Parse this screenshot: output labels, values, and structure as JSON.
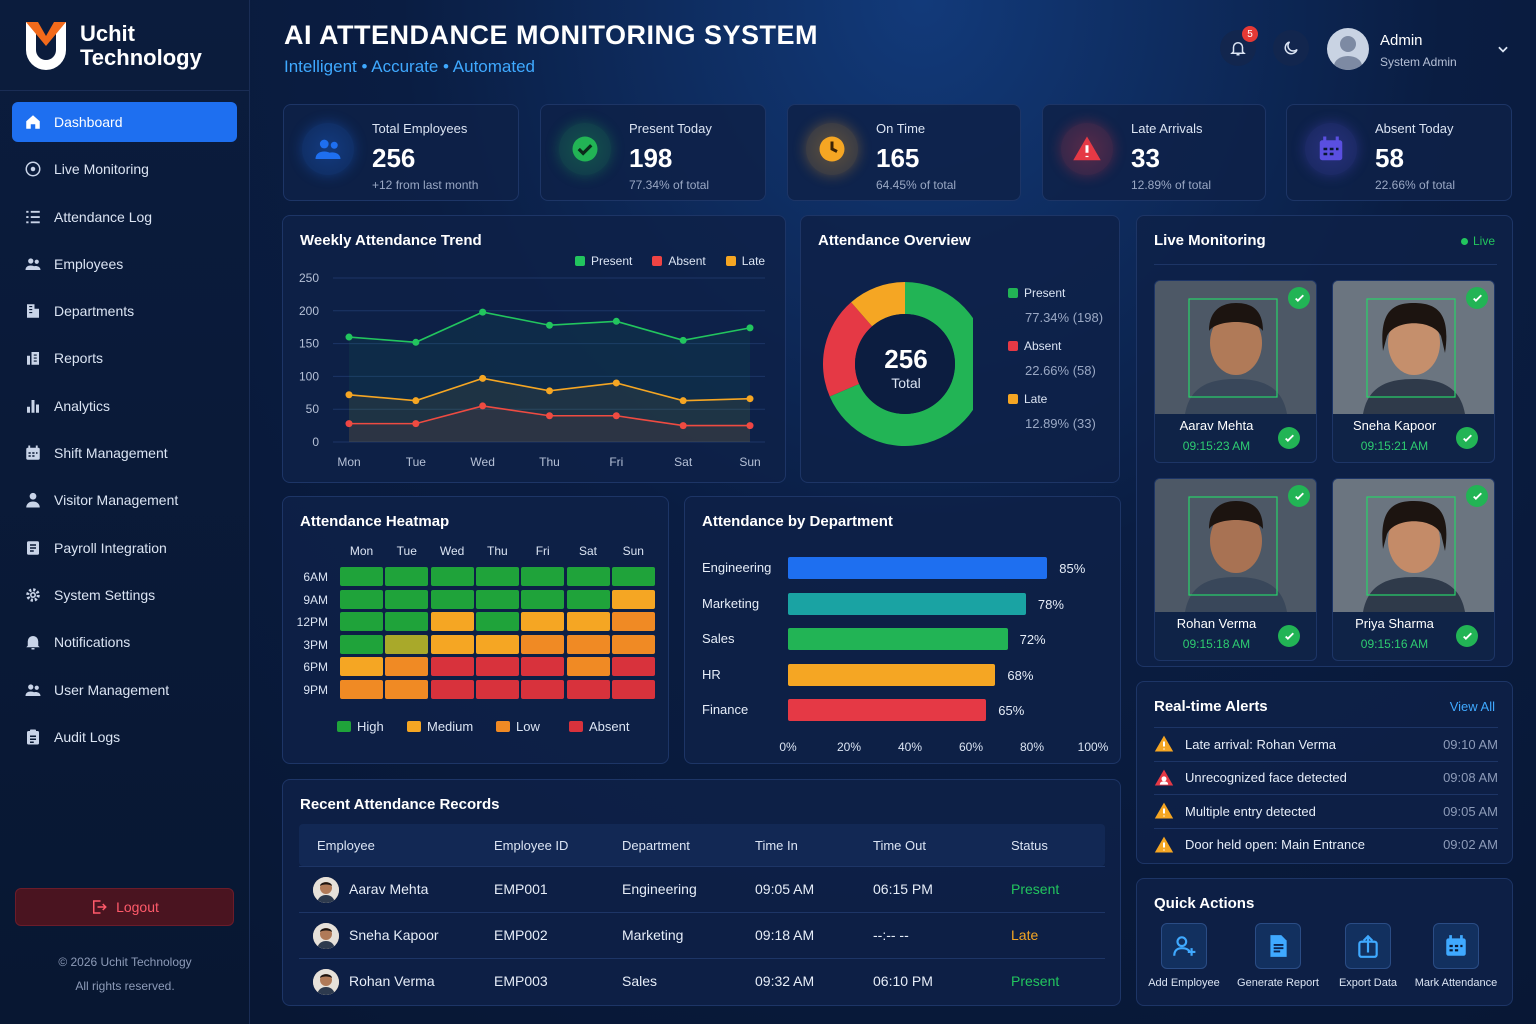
{
  "brand": {
    "name_line1": "Uchit",
    "name_line2": "Technology"
  },
  "header": {
    "title": "AI ATTENDANCE MONITORING SYSTEM",
    "subtitle": "Intelligent  •  Accurate  •  Automated",
    "notification_count": "5",
    "user_name": "Admin",
    "user_role": "System Admin"
  },
  "sidebar": {
    "items": [
      {
        "label": "Dashboard",
        "icon": "home-icon",
        "active": true
      },
      {
        "label": "Live Monitoring",
        "icon": "camera-icon"
      },
      {
        "label": "Attendance Log",
        "icon": "list-icon"
      },
      {
        "label": "Employees",
        "icon": "users-icon"
      },
      {
        "label": "Departments",
        "icon": "building-icon"
      },
      {
        "label": "Reports",
        "icon": "report-icon"
      },
      {
        "label": "Analytics",
        "icon": "bar-chart-icon"
      },
      {
        "label": "Shift Management",
        "icon": "calendar-icon"
      },
      {
        "label": "Visitor Management",
        "icon": "person-icon"
      },
      {
        "label": "Payroll Integration",
        "icon": "payroll-icon"
      },
      {
        "label": "System Settings",
        "icon": "gear-icon"
      },
      {
        "label": "Notifications",
        "icon": "bell-icon"
      },
      {
        "label": "User Management",
        "icon": "user-group-icon"
      },
      {
        "label": "Audit Logs",
        "icon": "clipboard-icon"
      }
    ],
    "logout_label": "Logout",
    "copyright_line1": "© 2026 Uchit Technology",
    "copyright_line2": "All rights reserved."
  },
  "stats": [
    {
      "label": "Total Employees",
      "value": "256",
      "sub": "+12 from last month",
      "color": "#1e6ff0",
      "icon": "users-icon"
    },
    {
      "label": "Present Today",
      "value": "198",
      "sub": "77.34% of total",
      "color": "#22b455",
      "icon": "check-icon"
    },
    {
      "label": "On Time",
      "value": "165",
      "sub": "64.45% of total",
      "color": "#f5a623",
      "icon": "clock-icon"
    },
    {
      "label": "Late Arrivals",
      "value": "33",
      "sub": "12.89% of total",
      "color": "#e53945",
      "icon": "warning-icon"
    },
    {
      "label": "Absent Today",
      "value": "58",
      "sub": "22.66% of total",
      "color": "#5a4fe0",
      "icon": "calendar-icon"
    }
  ],
  "weekly": {
    "title": "Weekly Attendance Trend",
    "legend": [
      "Present",
      "Absent",
      "Late"
    ]
  },
  "overview": {
    "title": "Attendance Overview",
    "center_value": "256",
    "center_label": "Total",
    "items": [
      {
        "label": "Present",
        "detail": "77.34% (198)",
        "color": "#22b455"
      },
      {
        "label": "Absent",
        "detail": "22.66% (58)",
        "color": "#e53945"
      },
      {
        "label": "Late",
        "detail": "12.89% (33)",
        "color": "#f5a623"
      }
    ]
  },
  "heatmap": {
    "title": "Attendance Heatmap",
    "days": [
      "Mon",
      "Tue",
      "Wed",
      "Thu",
      "Fri",
      "Sat",
      "Sun"
    ],
    "times": [
      "6AM",
      "9AM",
      "12PM",
      "3PM",
      "6PM",
      "9PM"
    ],
    "legend": [
      "High",
      "Medium",
      "Low",
      "Absent"
    ],
    "levels": [
      [
        "high",
        "high",
        "high",
        "high",
        "high",
        "high",
        "high"
      ],
      [
        "high",
        "high",
        "high",
        "high",
        "high",
        "high",
        "medium"
      ],
      [
        "high",
        "high",
        "medium",
        "high",
        "medium",
        "medium",
        "low"
      ],
      [
        "high",
        "highmed",
        "medium",
        "medium",
        "low",
        "low",
        "low"
      ],
      [
        "medium",
        "low",
        "absent",
        "absent",
        "absent",
        "low",
        "absent"
      ],
      [
        "low",
        "low",
        "absent",
        "absent",
        "absent",
        "absent",
        "absent"
      ]
    ]
  },
  "department": {
    "title": "Attendance by Department",
    "rows": [
      {
        "name": "Engineering",
        "value": 85,
        "label": "85%",
        "color": "#1e6ff0"
      },
      {
        "name": "Marketing",
        "value": 78,
        "label": "78%",
        "color": "#1aa3a3"
      },
      {
        "name": "Sales",
        "value": 72,
        "label": "72%",
        "color": "#22b455"
      },
      {
        "name": "HR",
        "value": 68,
        "label": "68%",
        "color": "#f5a623"
      },
      {
        "name": "Finance",
        "value": 65,
        "label": "65%",
        "color": "#e53945"
      }
    ],
    "ticks": [
      "0%",
      "20%",
      "40%",
      "60%",
      "80%",
      "100%"
    ]
  },
  "records": {
    "title": "Recent Attendance Records",
    "columns": [
      "Employee",
      "Employee ID",
      "Department",
      "Time In",
      "Time Out",
      "Status"
    ],
    "rows": [
      {
        "name": "Aarav Mehta",
        "id": "EMP001",
        "dept": "Engineering",
        "in": "09:05 AM",
        "out": "06:15 PM",
        "status": "Present",
        "status_color": "#22c55e"
      },
      {
        "name": "Sneha Kapoor",
        "id": "EMP002",
        "dept": "Marketing",
        "in": "09:18 AM",
        "out": "--:-- --",
        "status": "Late",
        "status_color": "#f5a623"
      },
      {
        "name": "Rohan Verma",
        "id": "EMP003",
        "dept": "Sales",
        "in": "09:32 AM",
        "out": "06:10 PM",
        "status": "Present",
        "status_color": "#22c55e"
      }
    ]
  },
  "live": {
    "title": "Live Monitoring",
    "live_label": "Live",
    "cams": [
      {
        "name": "Aarav Mehta",
        "time": "09:15:23 AM"
      },
      {
        "name": "Sneha Kapoor",
        "time": "09:15:21 AM"
      },
      {
        "name": "Rohan Verma",
        "time": "09:15:18 AM"
      },
      {
        "name": "Priya Sharma",
        "time": "09:15:16 AM"
      }
    ]
  },
  "alerts": {
    "title": "Real-time Alerts",
    "view_all": "View All",
    "items": [
      {
        "text": "Late arrival: Rohan Verma",
        "time": "09:10 AM",
        "icon": "warning-icon"
      },
      {
        "text": "Unrecognized face detected",
        "time": "09:08 AM",
        "icon": "face-alert-icon"
      },
      {
        "text": "Multiple entry detected",
        "time": "09:05 AM",
        "icon": "warning-icon"
      },
      {
        "text": "Door held open: Main Entrance",
        "time": "09:02 AM",
        "icon": "warning-icon"
      }
    ]
  },
  "quick": {
    "title": "Quick Actions",
    "items": [
      {
        "label": "Add Employee",
        "icon": "add-user-icon"
      },
      {
        "label": "Generate Report",
        "icon": "document-icon"
      },
      {
        "label": "Export Data",
        "icon": "export-icon"
      },
      {
        "label": "Mark Attendance",
        "icon": "calendar-icon"
      }
    ]
  },
  "chart_data": [
    {
      "type": "line",
      "title": "Weekly Attendance Trend",
      "categories": [
        "Mon",
        "Tue",
        "Wed",
        "Thu",
        "Fri",
        "Sat",
        "Sun"
      ],
      "ylim": [
        0,
        250
      ],
      "yticks": [
        "250",
        "200",
        "150",
        "100",
        "50",
        "0"
      ],
      "legend_position": "top-right",
      "series": [
        {
          "name": "Present",
          "color": "#22c55e",
          "values": [
            160,
            152,
            198,
            178,
            184,
            155,
            174
          ]
        },
        {
          "name": "Absent",
          "color": "#ef4444",
          "values": [
            28,
            28,
            55,
            40,
            40,
            25,
            25
          ]
        },
        {
          "name": "Late",
          "color": "#f5a623",
          "values": [
            72,
            63,
            97,
            78,
            90,
            63,
            66
          ]
        }
      ]
    },
    {
      "type": "pie",
      "title": "Attendance Overview",
      "series": [
        {
          "name": "Present",
          "color": "#22b455",
          "values": [
            198
          ]
        },
        {
          "name": "Absent",
          "color": "#e53945",
          "values": [
            58
          ]
        },
        {
          "name": "Late",
          "color": "#f5a623",
          "values": [
            33
          ]
        }
      ]
    },
    {
      "type": "bar",
      "title": "Attendance by Department",
      "categories": [
        "Engineering",
        "Marketing",
        "Sales",
        "HR",
        "Finance"
      ],
      "values": [
        85,
        78,
        72,
        68,
        65
      ],
      "xlim": [
        0,
        100
      ]
    }
  ]
}
